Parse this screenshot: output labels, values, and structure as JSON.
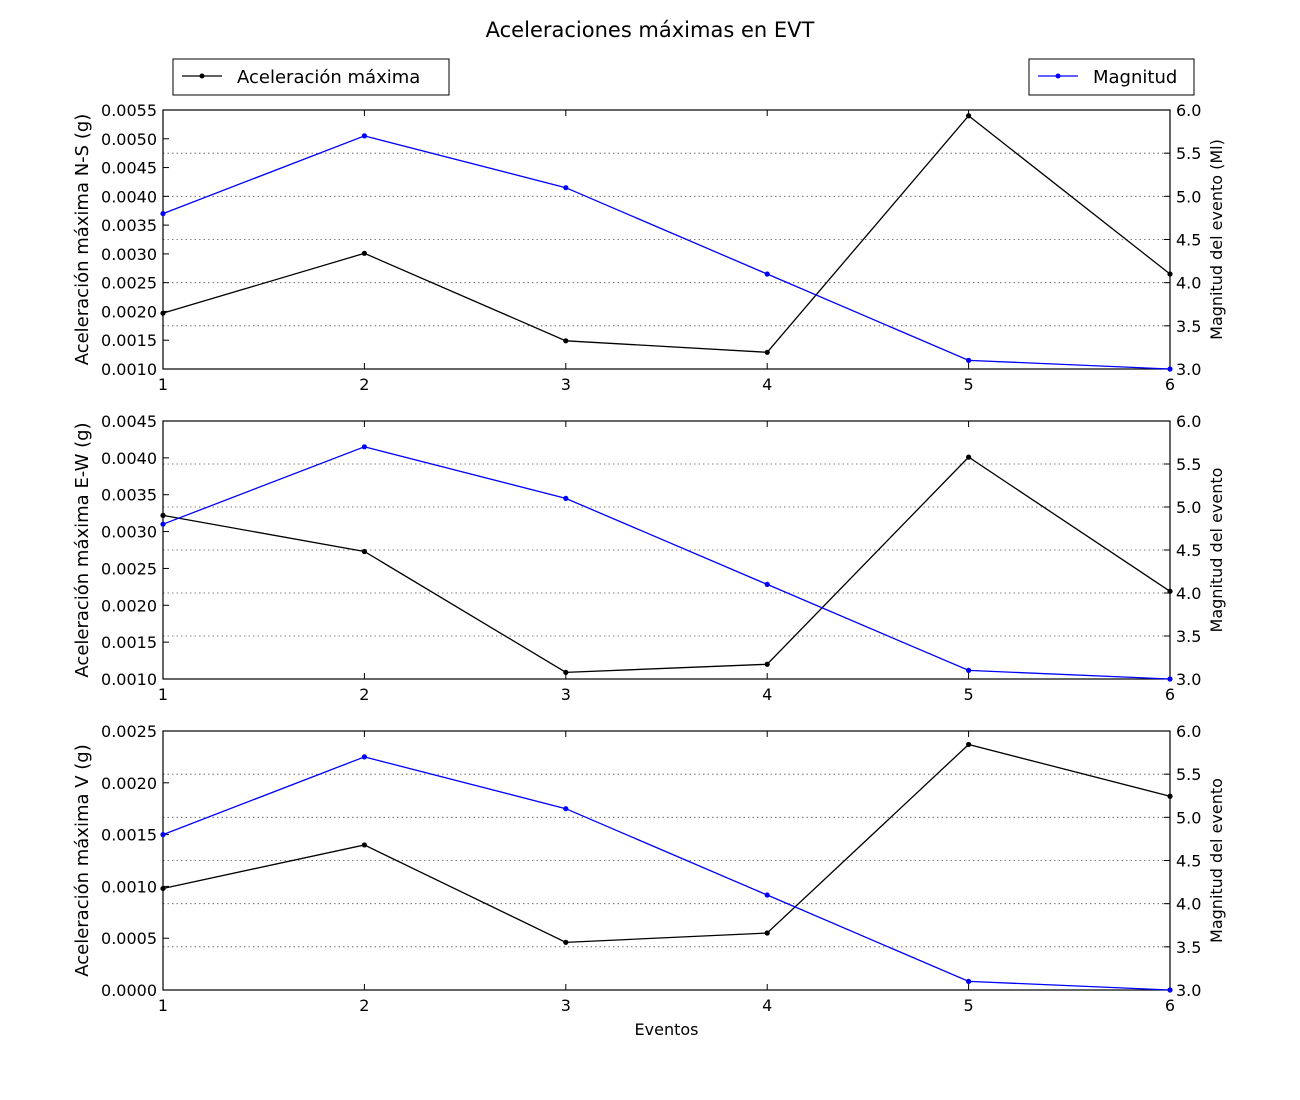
{
  "figure_title": "Aceleraciones máximas en EVT",
  "legend": {
    "left": {
      "label": "Aceleración máxima",
      "placement": "top-left"
    },
    "right": {
      "label": "Magnitud",
      "placement": "top-right"
    }
  },
  "colors": {
    "acceleration": "#000000",
    "magnitude": "#0000ff",
    "grid": "#555555",
    "axes": "#000000"
  },
  "chart_data": [
    {
      "type": "line",
      "id": "ns",
      "x": [
        1,
        2,
        3,
        4,
        5,
        6
      ],
      "xticks": [
        "1",
        "2",
        "3",
        "4",
        "5",
        "6"
      ],
      "xlim": [
        1,
        6
      ],
      "xlabel": "",
      "ylabel": "Aceleración máxima N-S (g)",
      "ylim": [
        0.001,
        0.0055
      ],
      "yticks": [
        "0.0010",
        "0.0015",
        "0.0020",
        "0.0025",
        "0.0030",
        "0.0035",
        "0.0040",
        "0.0045",
        "0.0050",
        "0.0055"
      ],
      "ylabel_right": "Magnitud del evento (Ml)",
      "ylim_right": [
        3.0,
        6.0
      ],
      "yticks_right": [
        "3.0",
        "3.5",
        "4.0",
        "4.5",
        "5.0",
        "5.5",
        "6.0"
      ],
      "grid": "y-dotted",
      "series": [
        {
          "name": "Aceleración máxima",
          "axis": "left",
          "values": [
            0.00197,
            0.00301,
            0.00149,
            0.00129,
            0.0054,
            0.00265
          ]
        },
        {
          "name": "Magnitud",
          "axis": "right",
          "values": [
            4.8,
            5.7,
            5.1,
            4.1,
            3.1,
            3.0
          ]
        }
      ]
    },
    {
      "type": "line",
      "id": "ew",
      "x": [
        1,
        2,
        3,
        4,
        5,
        6
      ],
      "xticks": [
        "1",
        "2",
        "3",
        "4",
        "5",
        "6"
      ],
      "xlim": [
        1,
        6
      ],
      "xlabel": "",
      "ylabel": "Aceleración máxima E-W (g)",
      "ylim": [
        0.001,
        0.0045
      ],
      "yticks": [
        "0.0010",
        "0.0015",
        "0.0020",
        "0.0025",
        "0.0030",
        "0.0035",
        "0.0040",
        "0.0045"
      ],
      "ylabel_right": "Magnitud del evento",
      "ylim_right": [
        3.0,
        6.0
      ],
      "yticks_right": [
        "3.0",
        "3.5",
        "4.0",
        "4.5",
        "5.0",
        "5.5",
        "6.0"
      ],
      "grid": "y-dotted",
      "series": [
        {
          "name": "Aceleración máxima",
          "axis": "left",
          "values": [
            0.00322,
            0.00273,
            0.00109,
            0.0012,
            0.00401,
            0.00219
          ]
        },
        {
          "name": "Magnitud",
          "axis": "right",
          "values": [
            4.8,
            5.7,
            5.1,
            4.1,
            3.1,
            3.0
          ]
        }
      ]
    },
    {
      "type": "line",
      "id": "v",
      "x": [
        1,
        2,
        3,
        4,
        5,
        6
      ],
      "xticks": [
        "1",
        "2",
        "3",
        "4",
        "5",
        "6"
      ],
      "xlim": [
        1,
        6
      ],
      "xlabel": "Eventos",
      "ylabel": "Aceleración máxima V (g)",
      "ylim": [
        0.0,
        0.0025
      ],
      "yticks": [
        "0.0000",
        "0.0005",
        "0.0010",
        "0.0015",
        "0.0020",
        "0.0025"
      ],
      "ylabel_right": "Magnitud del evento",
      "ylim_right": [
        3.0,
        6.0
      ],
      "yticks_right": [
        "3.0",
        "3.5",
        "4.0",
        "4.5",
        "5.0",
        "5.5",
        "6.0"
      ],
      "grid": "y-dotted",
      "series": [
        {
          "name": "Aceleración máxima",
          "axis": "left",
          "values": [
            0.00098,
            0.0014,
            0.00046,
            0.00055,
            0.00237,
            0.00187
          ]
        },
        {
          "name": "Magnitud",
          "axis": "right",
          "values": [
            4.8,
            5.7,
            5.1,
            4.1,
            3.1,
            3.0
          ]
        }
      ]
    }
  ]
}
